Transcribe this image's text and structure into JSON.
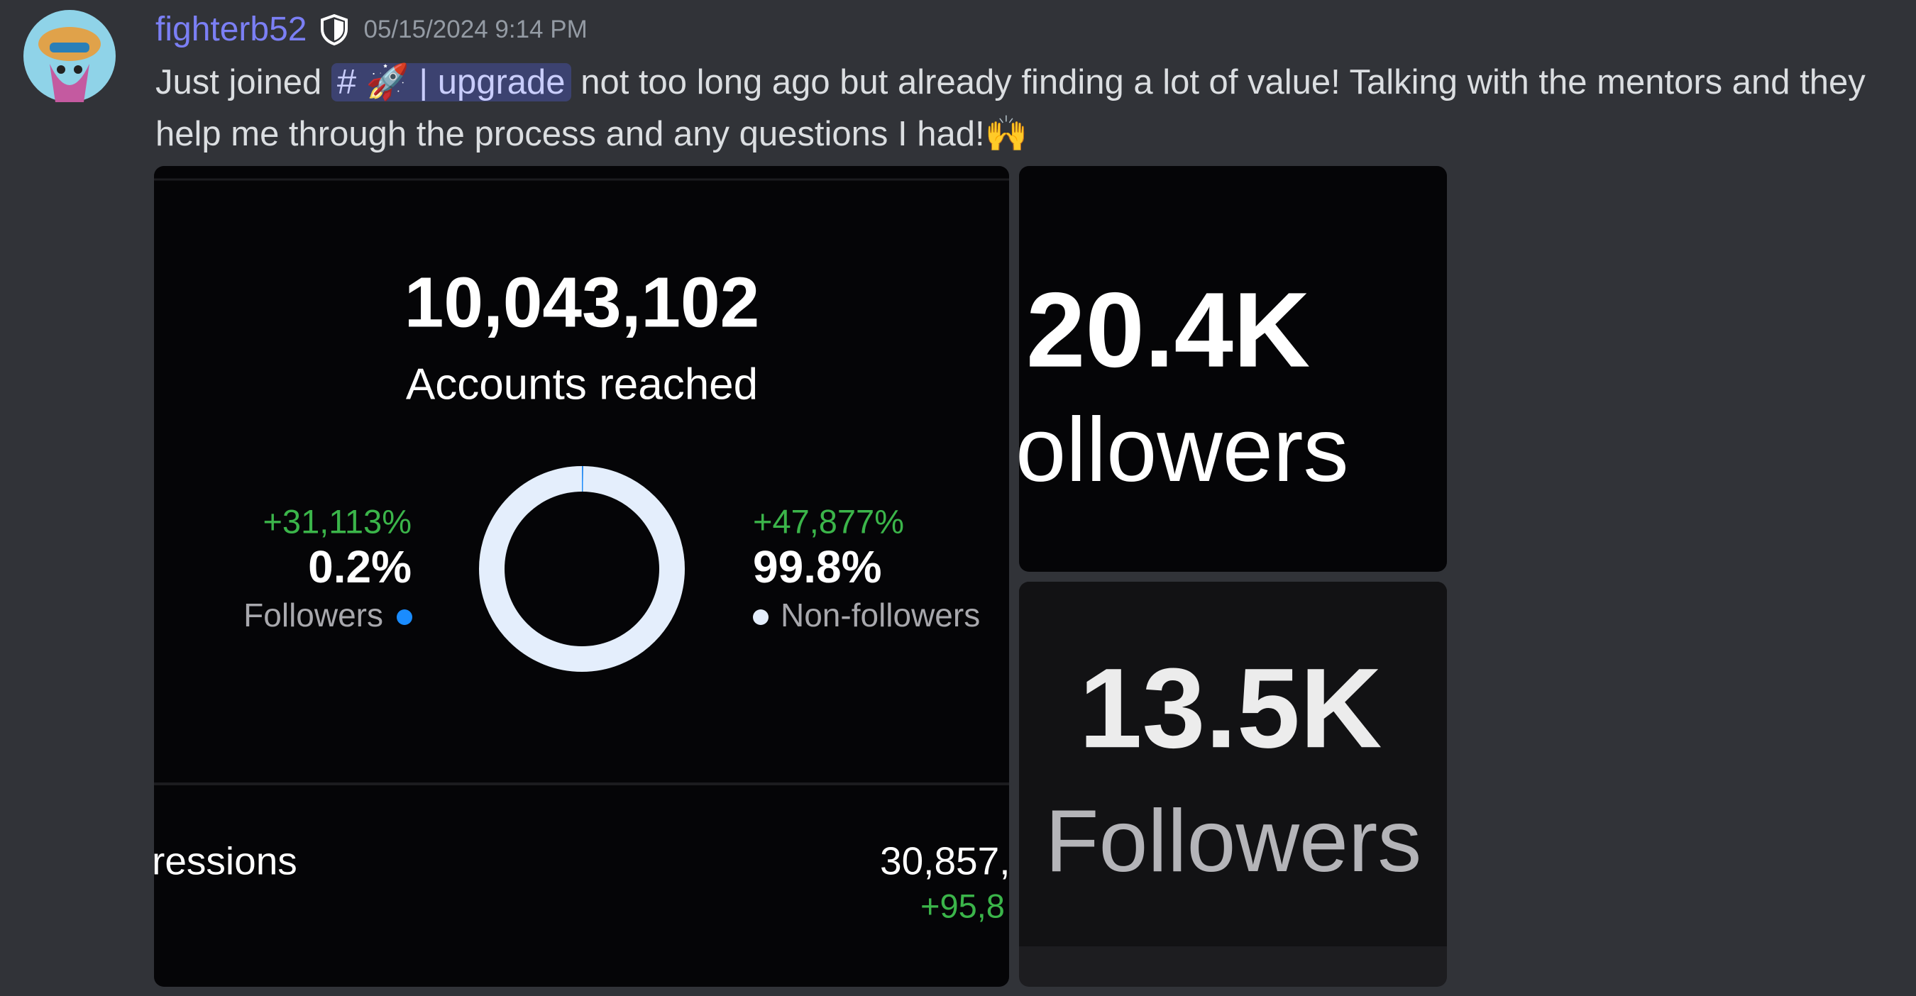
{
  "message": {
    "author": "fighterb52",
    "timestamp": "05/15/2024 9:14 PM",
    "text_before": "Just joined",
    "channel_mention": "# 🚀 | upgrade",
    "text_after": "not too long ago but already finding a lot of value! Talking with the mentors and they help me through the process and any questions I had!🙌"
  },
  "attachments": [
    {
      "reach": "10,043,102",
      "reach_label": "Accounts reached",
      "segments": [
        {
          "change": "+31,113%",
          "value": 0.2,
          "label": "0.2%",
          "name": "Followers",
          "color": "#1a8cff"
        },
        {
          "change": "+47,877%",
          "value": 99.8,
          "label": "99.8%",
          "name": "Non-followers",
          "color": "#e4eefc"
        }
      ],
      "row_label": "ressions",
      "row_value": "30,857,",
      "row_change": "+95,8"
    },
    {
      "value": "20.4K",
      "label": "ollowers"
    },
    {
      "value": "13.5K",
      "label": "Followers"
    }
  ]
}
